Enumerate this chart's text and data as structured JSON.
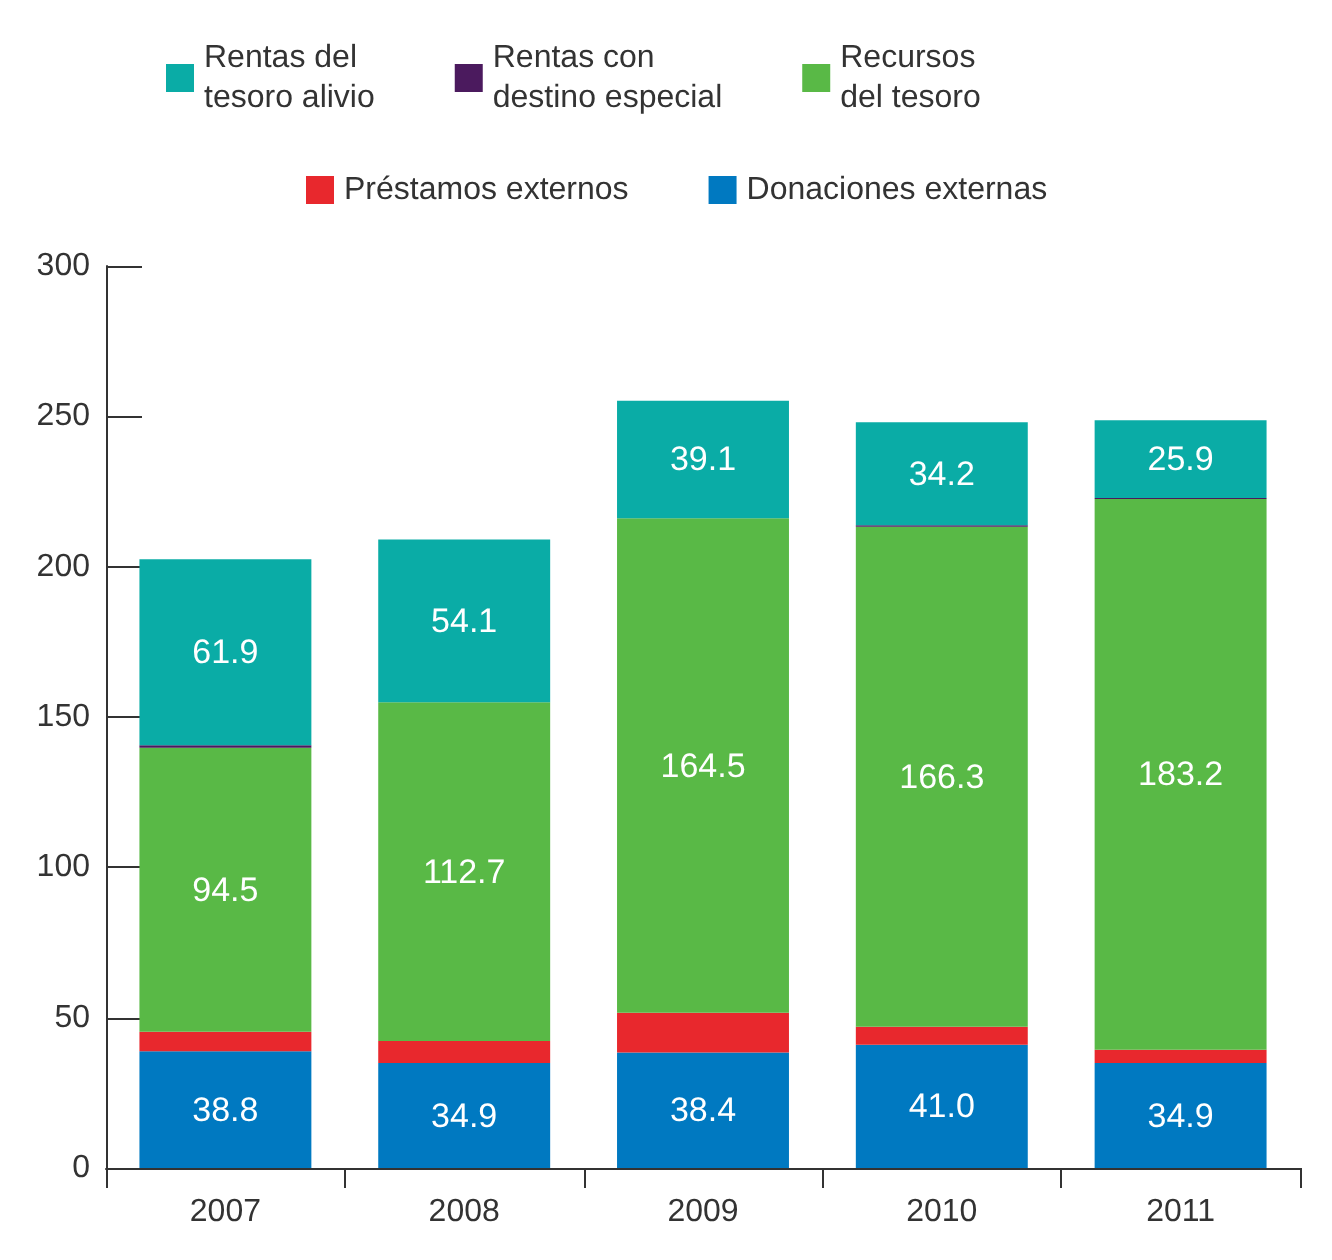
{
  "chart_data": {
    "type": "bar",
    "stacked": true,
    "categories": [
      "2007",
      "2008",
      "2009",
      "2010",
      "2011"
    ],
    "series": [
      {
        "name": "Donaciones externas",
        "color": "#0079c1",
        "values": [
          38.8,
          34.9,
          38.4,
          41.0,
          34.9
        ],
        "value_labels": [
          "38.8",
          "34.9",
          "38.4",
          "41.0",
          "34.9"
        ]
      },
      {
        "name": "Préstamos externos",
        "color": "#e8282d",
        "values": [
          6.5,
          7.3,
          13.2,
          6.0,
          4.4
        ]
      },
      {
        "name": "Recursos\ndel tesoro",
        "color": "#59b946",
        "values": [
          94.5,
          112.7,
          164.5,
          166.3,
          183.2
        ],
        "value_labels": [
          "94.5",
          "112.7",
          "164.5",
          "166.3",
          "183.2"
        ]
      },
      {
        "name": "Rentas con\ndestino especial",
        "color": "#4b1a5e",
        "values": [
          0.8,
          0,
          0,
          0.5,
          0.3
        ]
      },
      {
        "name": "Rentas del\ntesoro alivio",
        "color": "#0aaca6",
        "values": [
          61.9,
          54.1,
          39.1,
          34.2,
          25.9
        ],
        "value_labels": [
          "61.9",
          "54.1",
          "39.1",
          "34.2",
          "25.9"
        ]
      }
    ],
    "ylim": [
      0,
      300
    ],
    "yticks": [
      0,
      50,
      100,
      150,
      200,
      250,
      300
    ],
    "grid": false,
    "legend": "top"
  }
}
